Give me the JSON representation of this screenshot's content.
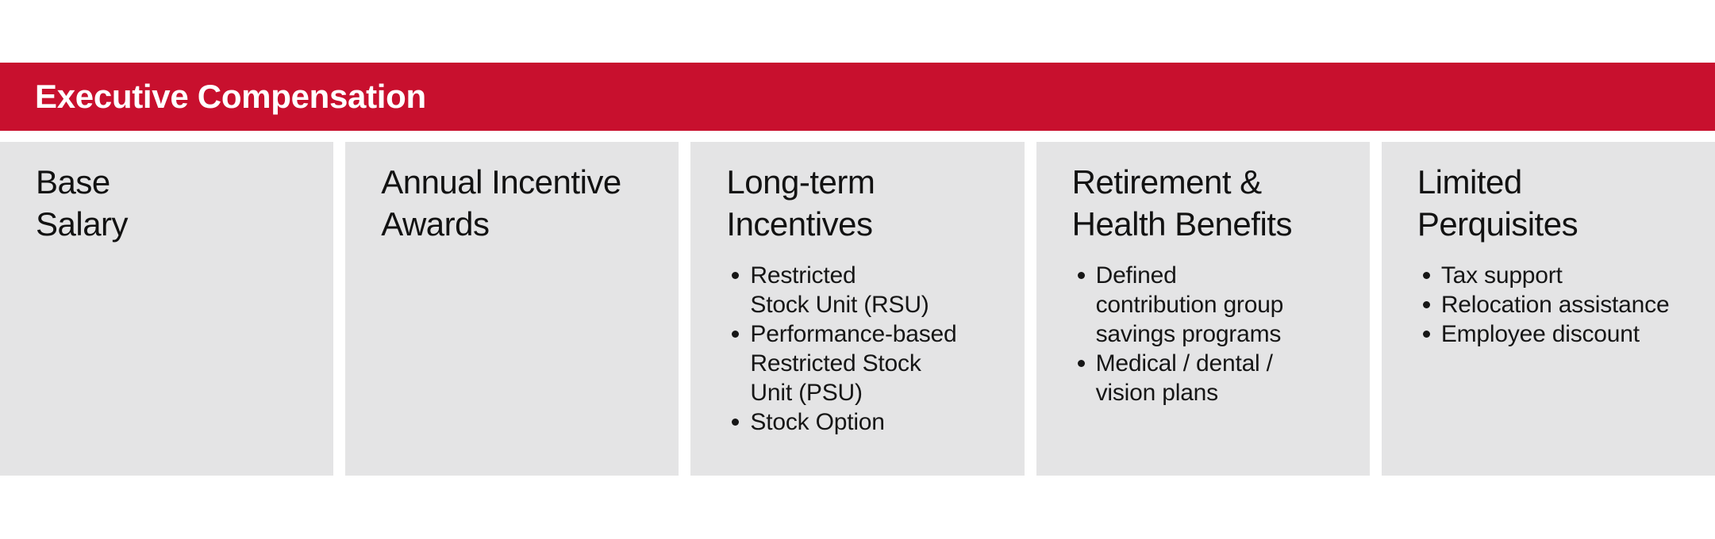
{
  "header": {
    "title": "Executive Compensation"
  },
  "colors": {
    "accent_red": "#C8102E",
    "panel_gray": "#E4E4E5",
    "header_text": "#FFFFFF",
    "body_text": "#161616"
  },
  "columns": [
    {
      "title_lines": [
        "Base",
        "Salary"
      ],
      "bullets": []
    },
    {
      "title_lines": [
        "Annual Incentive",
        "Awards"
      ],
      "bullets": []
    },
    {
      "title_lines": [
        "Long-term",
        "Incentives"
      ],
      "bullets": [
        [
          "Restricted",
          "Stock Unit (RSU)"
        ],
        [
          "Performance-based",
          "Restricted Stock",
          "Unit (PSU)"
        ],
        [
          "Stock Option"
        ]
      ]
    },
    {
      "title_lines": [
        "Retirement &",
        "Health Benefits"
      ],
      "bullets": [
        [
          "Defined",
          "contribution group",
          "savings programs"
        ],
        [
          "Medical / dental /",
          "vision plans"
        ]
      ]
    },
    {
      "title_lines": [
        "Limited",
        "Perquisites"
      ],
      "bullets": [
        [
          "Tax support"
        ],
        [
          "Relocation assistance"
        ],
        [
          "Employee discount"
        ]
      ]
    }
  ]
}
